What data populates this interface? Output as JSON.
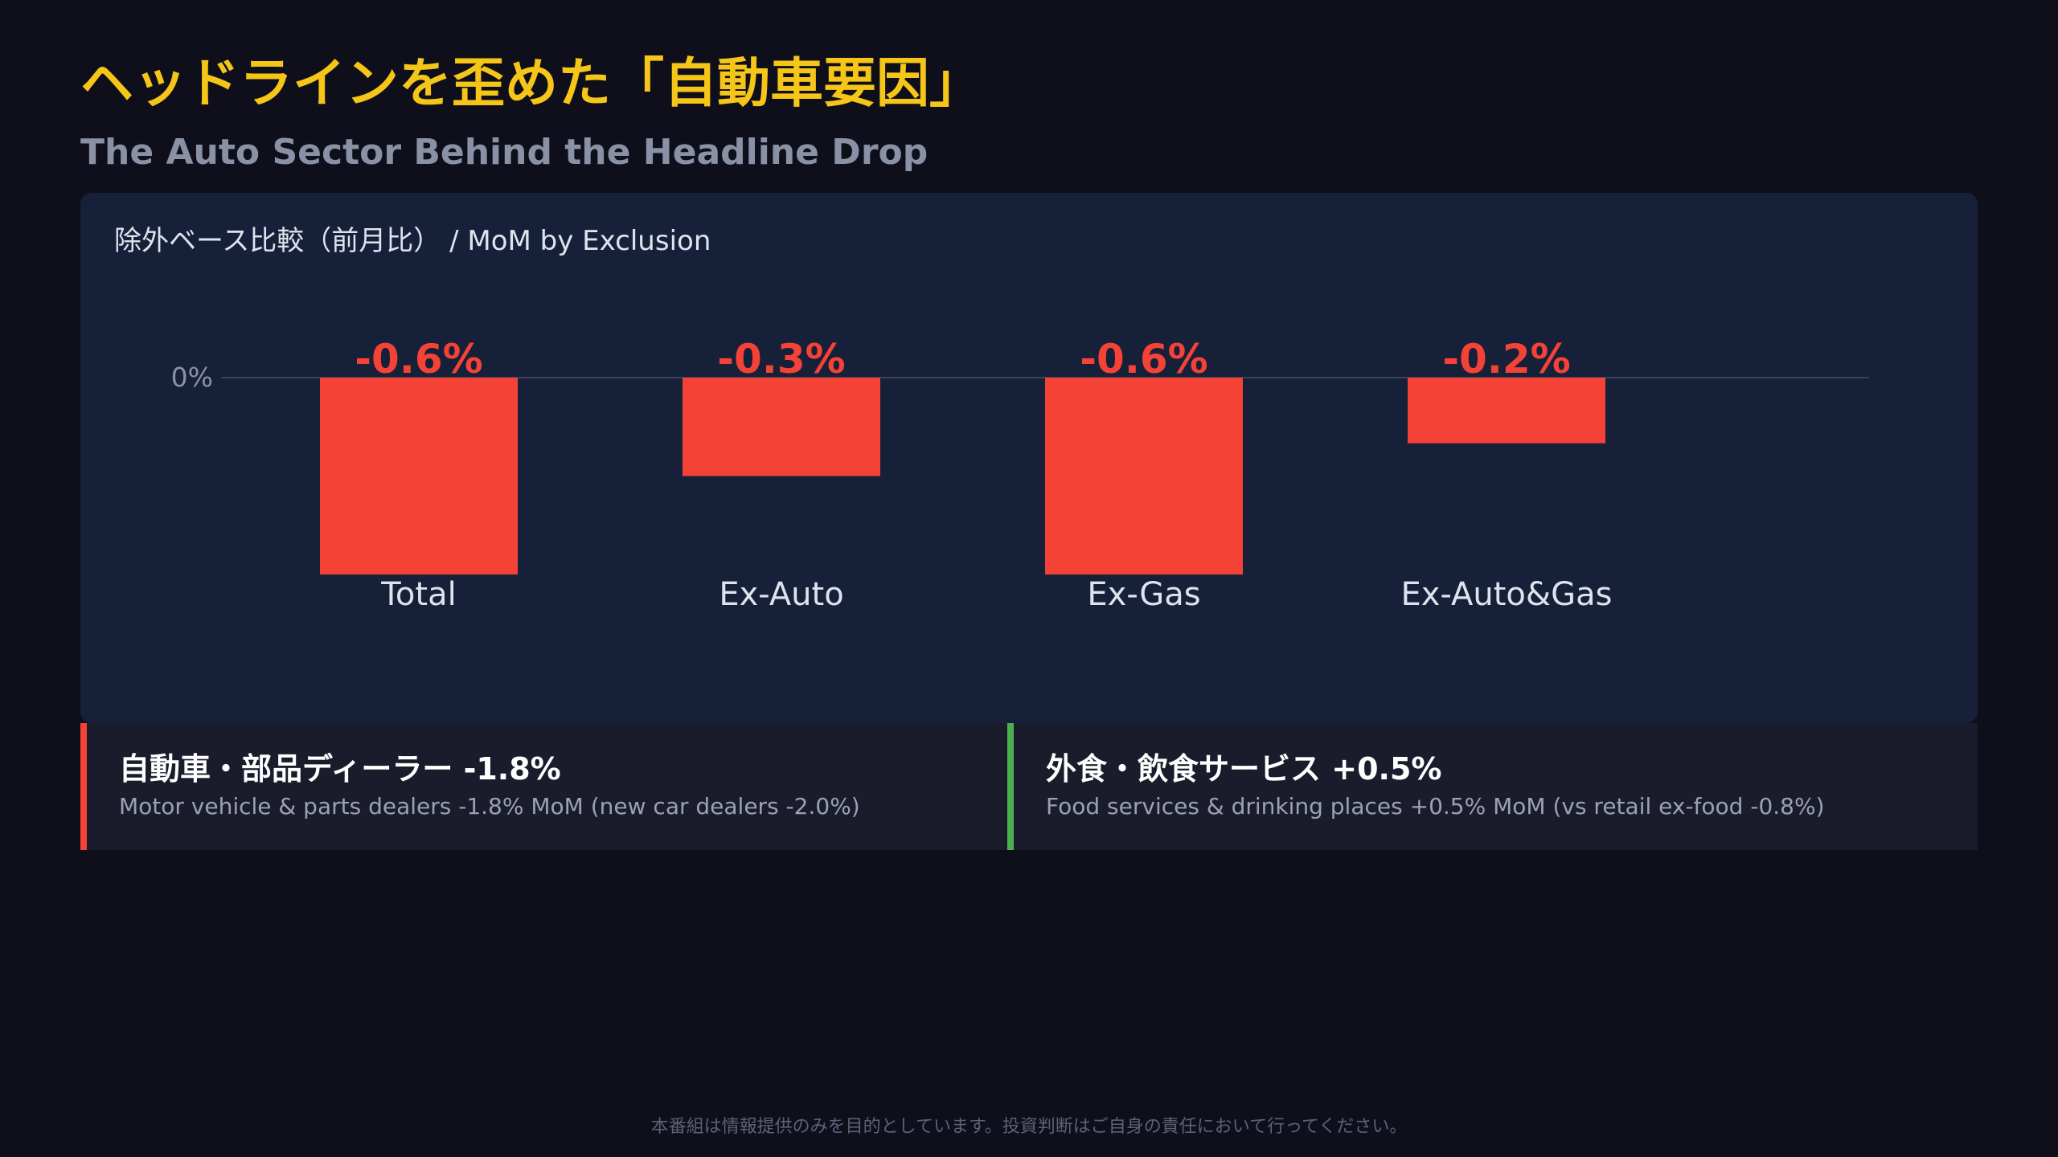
{
  "header": {
    "title": "ヘッドラインを歪めた「自動車要因」",
    "subtitle": "The Auto Sector Behind the Headline Drop"
  },
  "chart_panel": {
    "heading": "除外ベース比較（前月比） / MoM by Exclusion"
  },
  "chart_data": {
    "type": "bar",
    "categories": [
      "Total",
      "Ex-Auto",
      "Ex-Gas",
      "Ex-Auto&Gas"
    ],
    "values": [
      -0.6,
      -0.3,
      -0.6,
      -0.2
    ],
    "value_labels": [
      "-0.6%",
      "-0.3%",
      "-0.6%",
      "-0.2%"
    ],
    "zero_label": "0%",
    "title": "除外ベース比較（前月比） / MoM by Exclusion",
    "xlabel": "",
    "ylabel": "",
    "ylim": [
      -0.6,
      0
    ],
    "grid": false,
    "legend": "none",
    "colors": {
      "bar": "#f44336",
      "value_label": "#f44336",
      "category_label": "#dfe3ee",
      "zero_line": "#394256",
      "zero_label": "#8a91a5"
    }
  },
  "cards": [
    {
      "title": "自動車・部品ディーラー -1.8%",
      "description": "Motor vehicle & parts dealers -1.8% MoM (new car dealers -2.0%)",
      "accent": "#f44336"
    },
    {
      "title": "外食・飲食サービス +0.5%",
      "description": "Food services & drinking places +0.5% MoM (vs retail ex-food -0.8%)",
      "accent": "#4caf50"
    }
  ],
  "footer": {
    "disclaimer": "本番組は情報提供のみを目的としています。投資判断はご自身の責任において行ってください。"
  }
}
